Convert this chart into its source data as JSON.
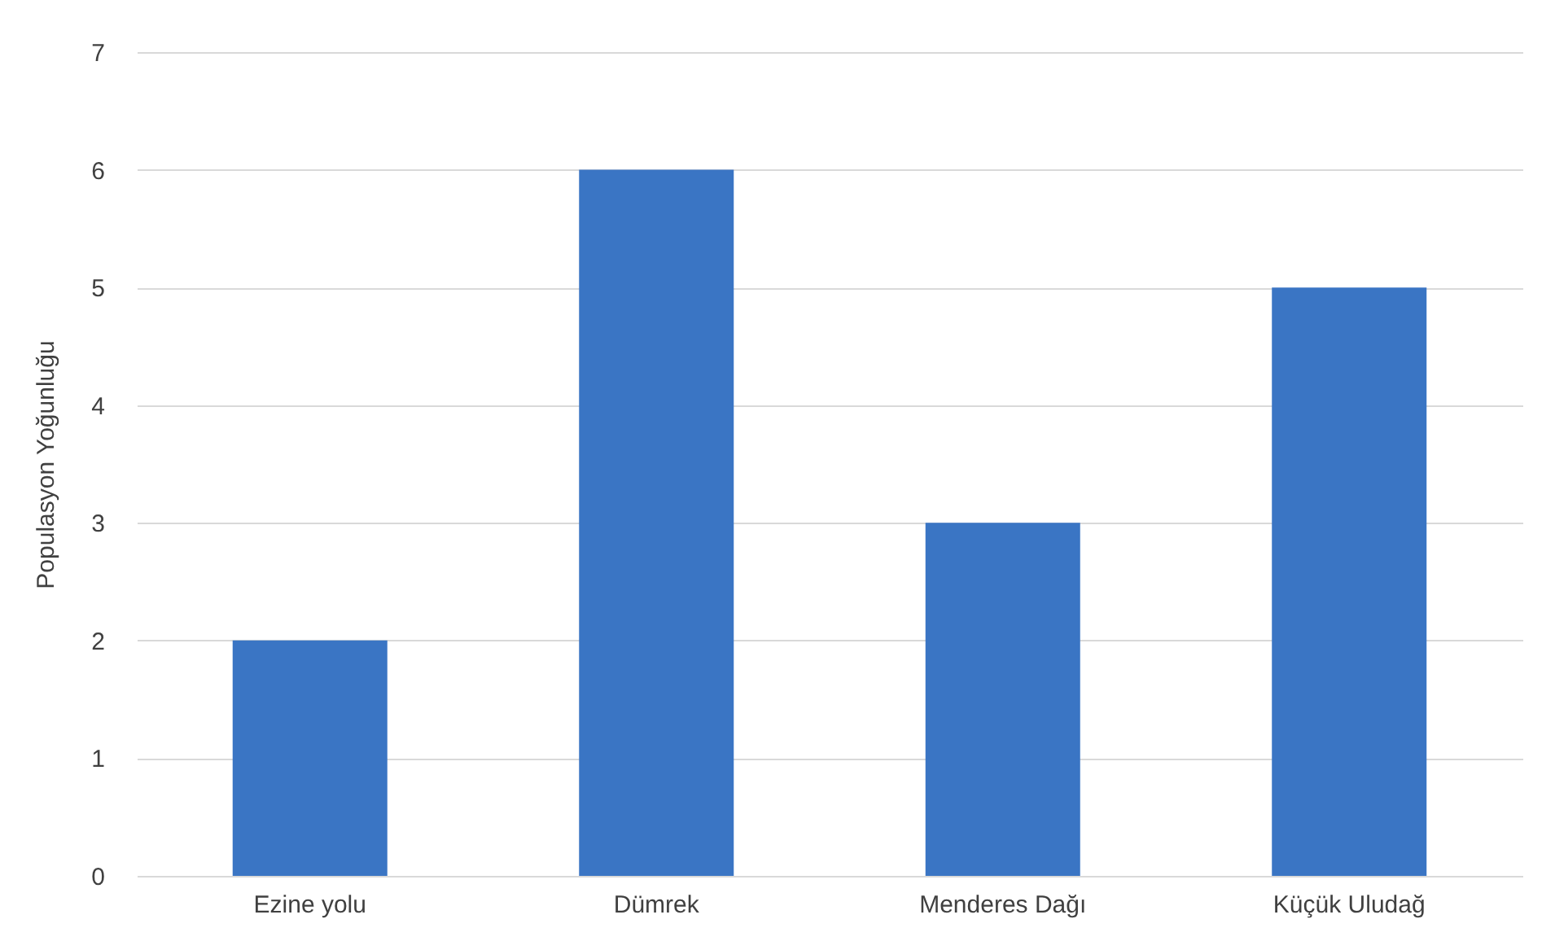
{
  "chart_data": {
    "type": "bar",
    "ylabel": "Populasyon Yoğunluğu",
    "categories": [
      "Ezine yolu",
      "Dümrek",
      "Menderes Dağı",
      "Küçük Uludağ"
    ],
    "values": [
      2,
      6,
      3,
      5
    ],
    "color": "#3a75c4",
    "ylim": [
      0,
      7
    ],
    "yticks": [
      0,
      1,
      2,
      3,
      4,
      5,
      6,
      7
    ],
    "grid": "y"
  }
}
